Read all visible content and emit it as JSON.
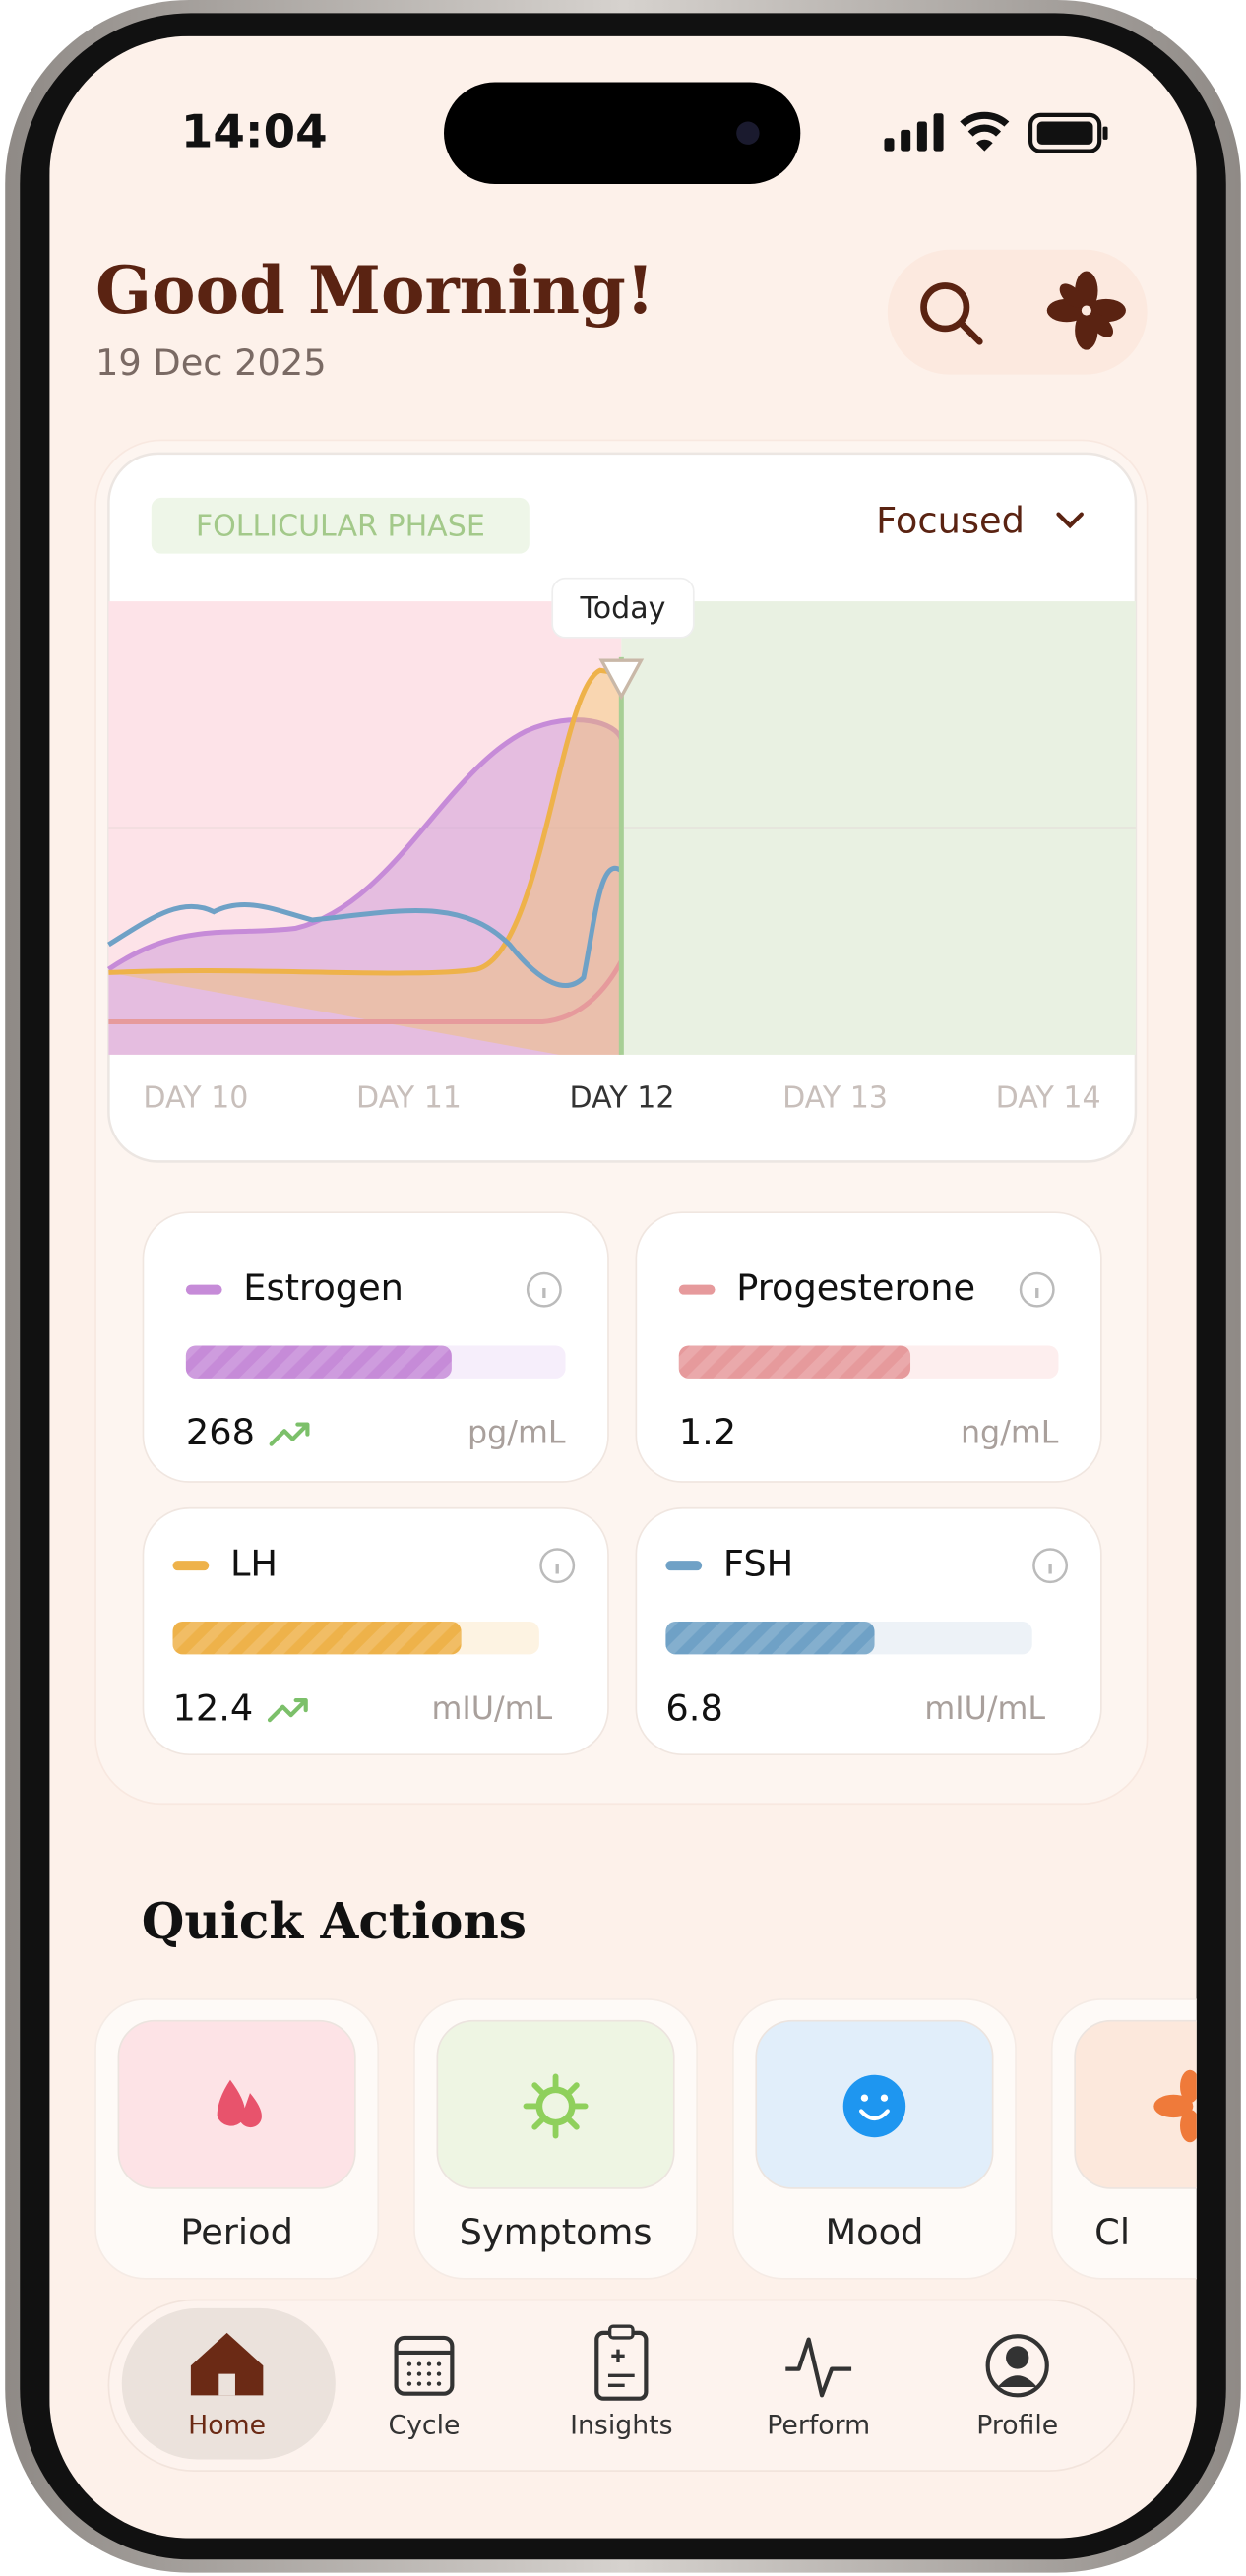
{
  "status": {
    "time": "14:04"
  },
  "header": {
    "greeting": "Good Morning!",
    "date": "19 Dec 2025"
  },
  "cycle_card": {
    "phase": "FOLLICULAR PHASE",
    "mood": "Focused",
    "marker": "Today",
    "days": [
      "DAY 10",
      "DAY 11",
      "DAY 12",
      "DAY 13",
      "DAY 14"
    ]
  },
  "hormones": [
    {
      "name": "Estrogen",
      "value": "268",
      "unit": "pg/mL"
    },
    {
      "name": "Progesterone",
      "value": "1.2",
      "unit": "ng/mL"
    },
    {
      "name": "LH",
      "value": "12.4",
      "unit": "mIU/mL"
    },
    {
      "name": "FSH",
      "value": "6.8",
      "unit": "mIU/mL"
    }
  ],
  "quick_actions": {
    "title": "Quick Actions",
    "items": [
      "Period",
      "Symptoms",
      "Mood",
      "Cl"
    ]
  },
  "nav": [
    "Home",
    "Cycle",
    "Insights",
    "Perform",
    "Profile"
  ]
}
